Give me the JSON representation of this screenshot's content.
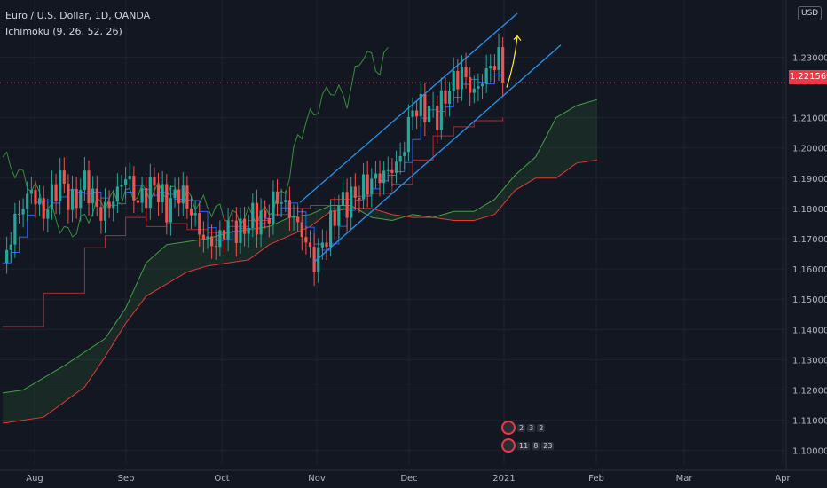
{
  "legend": {
    "title": "Euro / U.S. Dollar, 1D, OANDA",
    "indicator": "Ichimoku (9, 26, 52, 26)"
  },
  "currency": "USD",
  "last_price": "1.22156",
  "events": {
    "top": [
      "2",
      "3",
      "2"
    ],
    "bottom": [
      "11",
      "8",
      "23"
    ]
  },
  "colors": {
    "bg": "#131722",
    "up": "#26a69a",
    "down": "#ef5350",
    "conv": "#2962ff",
    "base": "#b22833",
    "lag": "#43a047",
    "spanA": "#1b5e20",
    "spanB": "#e53935",
    "channel": "#2196f3",
    "arrow": "#ffeb3b"
  },
  "chart_data": {
    "type": "candlestick",
    "y_ticks": [
      "1.23000",
      "1.21000",
      "1.20000",
      "1.19000",
      "1.18000",
      "1.17000",
      "1.16000",
      "1.15000",
      "1.14000",
      "1.13000",
      "1.12000",
      "1.11000",
      "1.10000"
    ],
    "x_ticks": [
      "Aug",
      "Sep",
      "Oct",
      "Nov",
      "Dec",
      "2021",
      "Feb",
      "Mar",
      "Apr"
    ],
    "ylim": [
      1.0955,
      1.2445
    ],
    "close_path": [
      [
        0,
        1.16
      ],
      [
        3,
        1.176
      ],
      [
        7,
        1.186
      ],
      [
        10,
        1.178
      ],
      [
        14,
        1.19
      ],
      [
        17,
        1.181
      ],
      [
        20,
        1.189
      ],
      [
        24,
        1.178
      ],
      [
        27,
        1.183
      ],
      [
        30,
        1.191
      ],
      [
        33,
        1.182
      ],
      [
        37,
        1.188
      ],
      [
        40,
        1.18
      ],
      [
        43,
        1.186
      ],
      [
        46,
        1.179
      ],
      [
        49,
        1.17
      ],
      [
        52,
        1.168
      ],
      [
        55,
        1.175
      ],
      [
        58,
        1.172
      ],
      [
        61,
        1.177
      ],
      [
        64,
        1.176
      ],
      [
        67,
        1.184
      ],
      [
        70,
        1.179
      ],
      [
        73,
        1.172
      ],
      [
        76,
        1.162
      ],
      [
        79,
        1.171
      ],
      [
        82,
        1.181
      ],
      [
        85,
        1.183
      ],
      [
        88,
        1.187
      ],
      [
        91,
        1.19
      ],
      [
        94,
        1.192
      ],
      [
        97,
        1.196
      ],
      [
        100,
        1.213
      ],
      [
        103,
        1.213
      ],
      [
        106,
        1.211
      ],
      [
        109,
        1.22
      ],
      [
        112,
        1.225
      ],
      [
        115,
        1.218
      ],
      [
        118,
        1.225
      ],
      [
        121,
        1.23
      ],
      [
        122,
        1.2216
      ]
    ],
    "kijun": [
      [
        0,
        1.141
      ],
      [
        10,
        1.152
      ],
      [
        20,
        1.167
      ],
      [
        25,
        1.171
      ],
      [
        30,
        1.177
      ],
      [
        35,
        1.174
      ],
      [
        40,
        1.175
      ],
      [
        45,
        1.173
      ],
      [
        50,
        1.172
      ],
      [
        55,
        1.174
      ],
      [
        60,
        1.176
      ],
      [
        65,
        1.178
      ],
      [
        70,
        1.18
      ],
      [
        75,
        1.181
      ],
      [
        80,
        1.183
      ],
      [
        85,
        1.184
      ],
      [
        90,
        1.185
      ],
      [
        95,
        1.188
      ],
      [
        100,
        1.196
      ],
      [
        105,
        1.204
      ],
      [
        110,
        1.207
      ],
      [
        115,
        1.209
      ],
      [
        122,
        1.21
      ]
    ],
    "chikou": [
      [
        0,
        1.197
      ],
      [
        8,
        1.186
      ],
      [
        16,
        1.171
      ],
      [
        24,
        1.182
      ],
      [
        32,
        1.185
      ],
      [
        40,
        1.186
      ],
      [
        48,
        1.182
      ],
      [
        56,
        1.177
      ],
      [
        64,
        1.178
      ],
      [
        68,
        1.184
      ],
      [
        70,
        1.191
      ],
      [
        72,
        1.204
      ],
      [
        76,
        1.212
      ],
      [
        80,
        1.22
      ],
      [
        84,
        1.216
      ],
      [
        88,
        1.232
      ],
      [
        92,
        1.226
      ],
      [
        94,
        1.232
      ]
    ],
    "span_a": [
      [
        0,
        1.119
      ],
      [
        5,
        1.12
      ],
      [
        15,
        1.128
      ],
      [
        25,
        1.137
      ],
      [
        30,
        1.147
      ],
      [
        35,
        1.162
      ],
      [
        40,
        1.168
      ],
      [
        45,
        1.169
      ],
      [
        50,
        1.17
      ],
      [
        55,
        1.172
      ],
      [
        60,
        1.173
      ],
      [
        65,
        1.174
      ],
      [
        70,
        1.177
      ],
      [
        75,
        1.178
      ],
      [
        80,
        1.181
      ],
      [
        85,
        1.181
      ],
      [
        90,
        1.177
      ],
      [
        95,
        1.176
      ],
      [
        100,
        1.178
      ],
      [
        105,
        1.177
      ],
      [
        110,
        1.179
      ],
      [
        115,
        1.179
      ],
      [
        120,
        1.183
      ],
      [
        125,
        1.191
      ],
      [
        130,
        1.197
      ],
      [
        135,
        1.21
      ],
      [
        140,
        1.214
      ],
      [
        145,
        1.216
      ]
    ],
    "span_b": [
      [
        0,
        1.109
      ],
      [
        10,
        1.111
      ],
      [
        20,
        1.121
      ],
      [
        25,
        1.131
      ],
      [
        30,
        1.142
      ],
      [
        35,
        1.151
      ],
      [
        40,
        1.155
      ],
      [
        45,
        1.159
      ],
      [
        50,
        1.161
      ],
      [
        55,
        1.162
      ],
      [
        60,
        1.163
      ],
      [
        65,
        1.168
      ],
      [
        70,
        1.171
      ],
      [
        75,
        1.174
      ],
      [
        80,
        1.179
      ],
      [
        85,
        1.18
      ],
      [
        90,
        1.18
      ],
      [
        95,
        1.178
      ],
      [
        100,
        1.177
      ],
      [
        105,
        1.177
      ],
      [
        110,
        1.176
      ],
      [
        115,
        1.176
      ],
      [
        120,
        1.178
      ],
      [
        125,
        1.186
      ],
      [
        130,
        1.19
      ],
      [
        135,
        1.19
      ],
      [
        140,
        1.195
      ],
      [
        145,
        1.196
      ]
    ]
  }
}
